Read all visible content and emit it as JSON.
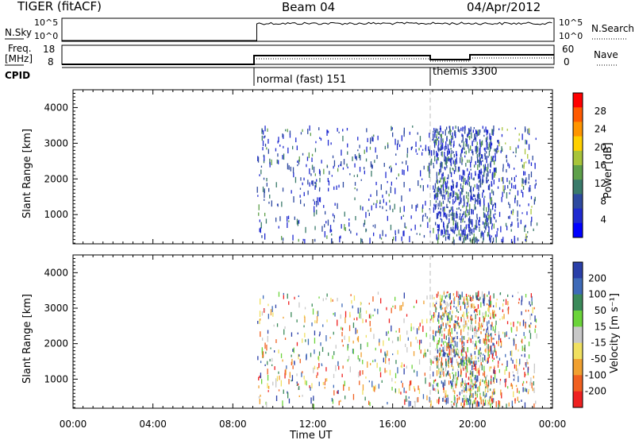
{
  "header": {
    "radar": "TIGER (fitACF)",
    "beam": "Beam 04",
    "date": "04/Apr/2012"
  },
  "summary_panels": {
    "nsky_label": "N.Sky",
    "nsearch_label": "N.Search",
    "freq_label_1": "Freq.",
    "freq_label_2": "[MHz]",
    "nave_label": "Nave",
    "cpid_label": "CPID",
    "count_ticks": [
      "10^5",
      "10^0"
    ],
    "freq_ticks": [
      "18",
      "8"
    ],
    "nave_ticks": [
      "60",
      "0"
    ],
    "cpid_modes": [
      {
        "label": "normal (fast) 151",
        "start_hour": 9.2
      },
      {
        "label": "themis 3300",
        "start_hour": 18.0
      }
    ]
  },
  "colors": {
    "data_start_hour": 9.2,
    "mode_change_hour": 18.0
  },
  "chart_data": [
    {
      "type": "heatmap",
      "name": "power",
      "ylabel": "Slant Range [km]",
      "ylim": [
        180,
        4500
      ],
      "yticks": [
        1000,
        2000,
        3000,
        4000
      ],
      "xlim": [
        0,
        24
      ],
      "colorbar": {
        "label": "Power [dB]",
        "ticks": [
          "28",
          "24",
          "20",
          "16",
          "12",
          "8",
          "4"
        ],
        "colors": [
          "#ff0000",
          "#ff5a00",
          "#ff9500",
          "#ffd000",
          "#a8c43a",
          "#5ea04a",
          "#3a7a6a",
          "#2e4aa0",
          "#1f2ad0",
          "#0000ff"
        ]
      }
    },
    {
      "type": "heatmap",
      "name": "velocity",
      "ylabel": "Slant Range [km]",
      "ylim": [
        180,
        4500
      ],
      "yticks": [
        1000,
        2000,
        3000,
        4000
      ],
      "xlim": [
        0,
        24
      ],
      "xticks": [
        "00:00",
        "04:00",
        "08:00",
        "12:00",
        "16:00",
        "20:00",
        "00:00"
      ],
      "xlabel": "Time UT",
      "colorbar": {
        "label": "Velocity [m s⁻¹]",
        "ticks": [
          "200",
          "100",
          "50",
          "15",
          "-15",
          "-50",
          "-100",
          "-200"
        ],
        "colors": [
          "#2a3fa8",
          "#3e6ab8",
          "#3b8a5a",
          "#6bd43a",
          "#c8c8c8",
          "#f0e060",
          "#f0a030",
          "#f06020",
          "#ee2020"
        ]
      }
    }
  ]
}
